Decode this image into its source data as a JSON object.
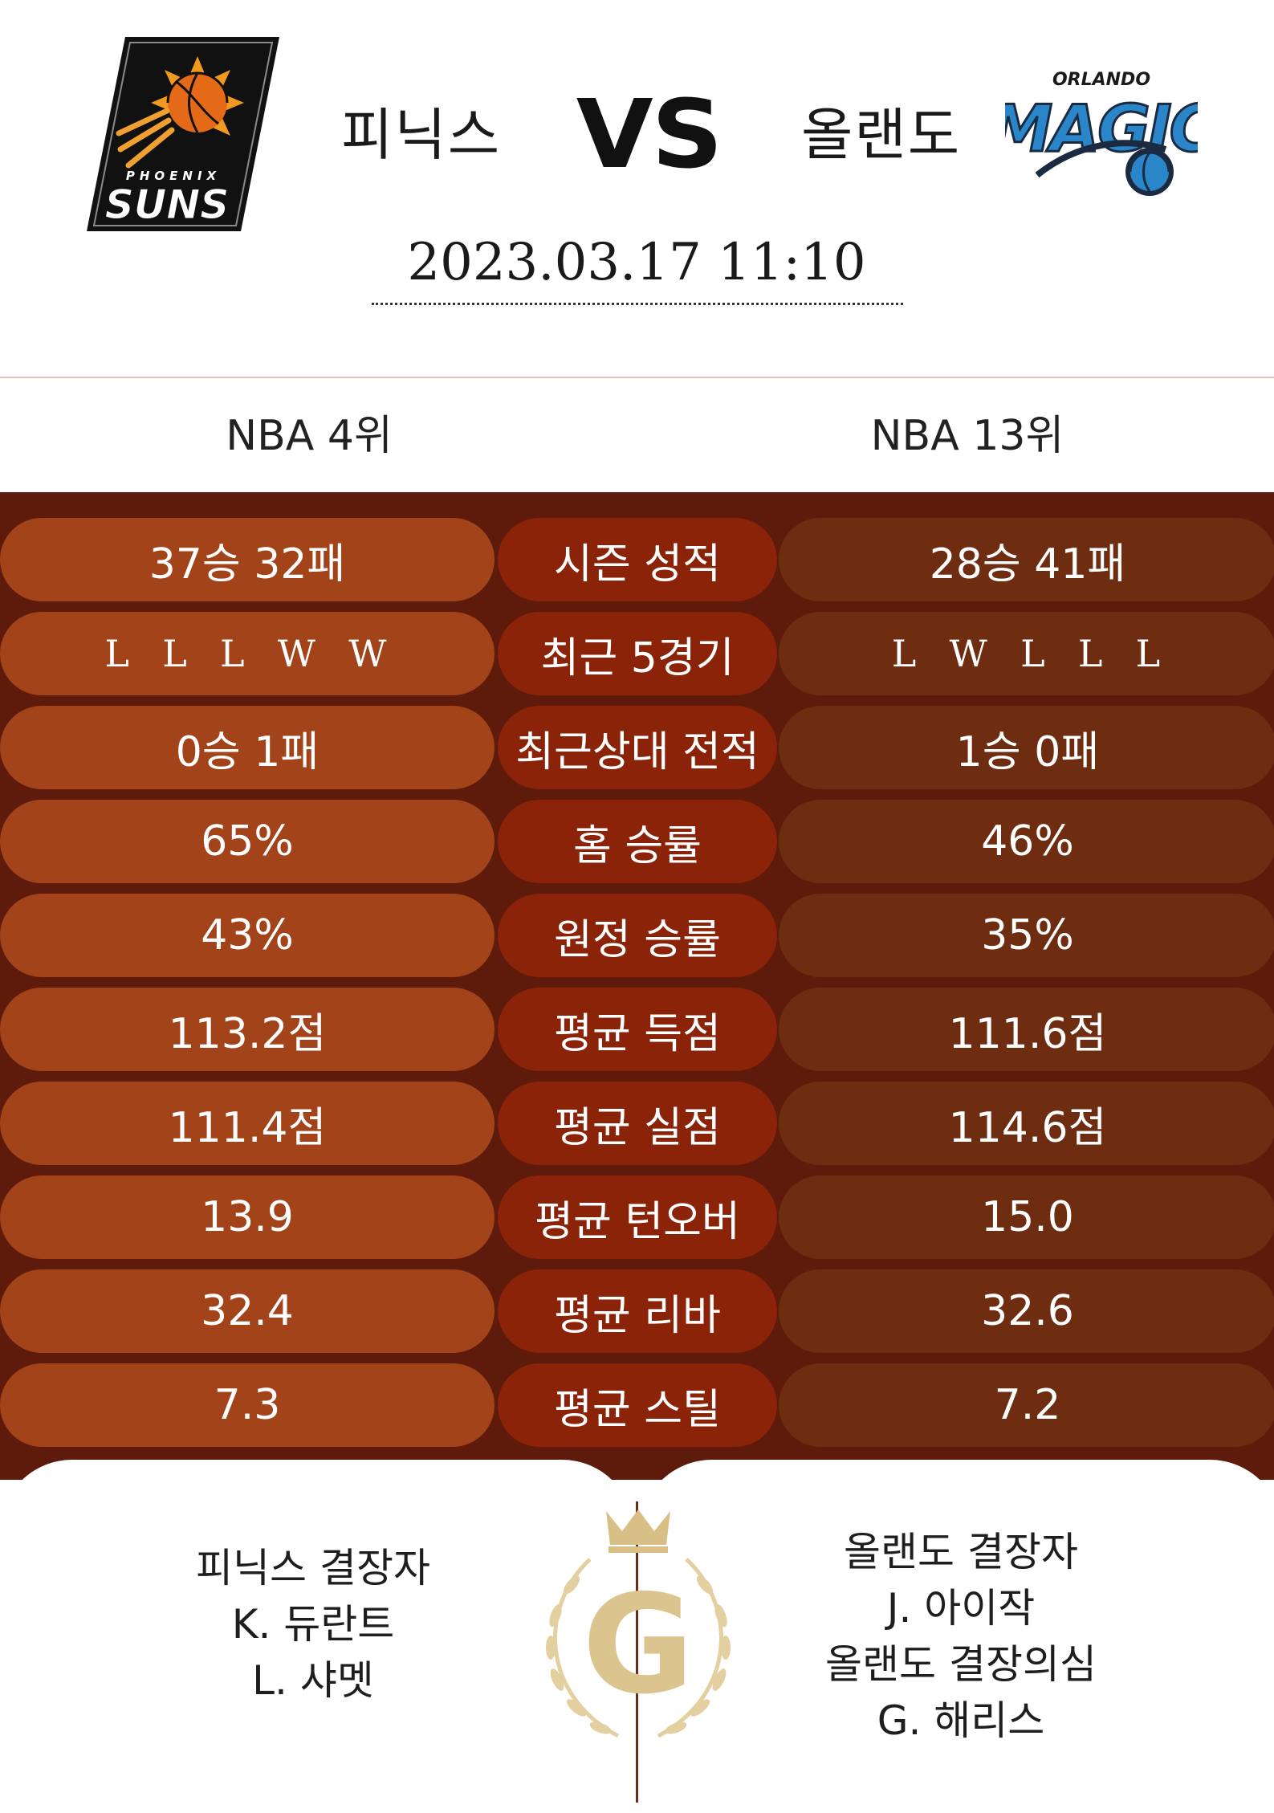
{
  "header": {
    "home_team": "피닉스",
    "vs": "VS",
    "away_team": "올랜도",
    "datetime": "2023.03.17  11:10",
    "home_logo": {
      "icon": "phoenix-suns-logo",
      "text_top": "PHOENIX",
      "text_main": "SUNS"
    },
    "away_logo": {
      "icon": "orlando-magic-logo",
      "text_top": "ORLANDO",
      "text_main": "MAGIC"
    }
  },
  "ranks": {
    "home": "NBA 4위",
    "away": "NBA 13위"
  },
  "stats": [
    {
      "label": "시즌 성적",
      "home": "37승 32패",
      "away": "28승 41패"
    },
    {
      "label": "최근 5경기",
      "home": "L  L  L  W  W",
      "away": "L  W  L  L  L"
    },
    {
      "label": "최근상대 전적",
      "home": "0승 1패",
      "away": "1승 0패"
    },
    {
      "label": "홈 승률",
      "home": "65%",
      "away": "46%"
    },
    {
      "label": "원정 승률",
      "home": "43%",
      "away": "35%"
    },
    {
      "label": "평균 득점",
      "home": "113.2점",
      "away": "111.6점"
    },
    {
      "label": "평균 실점",
      "home": "111.4점",
      "away": "114.6점"
    },
    {
      "label": "평균 턴오버",
      "home": "13.9",
      "away": "15.0"
    },
    {
      "label": "평균 리바",
      "home": "32.4",
      "away": "32.6"
    },
    {
      "label": "평균 스틸",
      "home": "7.3",
      "away": "7.2"
    }
  ],
  "injuries": {
    "home": [
      "피닉스 결장자",
      "K. 듀란트",
      "L. 샤멧"
    ],
    "away": [
      "올랜도 결장자",
      "J. 아이작",
      "올랜도 결장의심",
      "G. 해리스"
    ]
  },
  "emblem": {
    "letter": "G",
    "icon": "crown-laurel-emblem"
  },
  "colors": {
    "stats_background": "#5e1a0b",
    "home_pill": "#a2431a",
    "label_pill": "#8a2308",
    "away_pill": "#6e2c10",
    "emblem_gold": "#d8bf86"
  }
}
